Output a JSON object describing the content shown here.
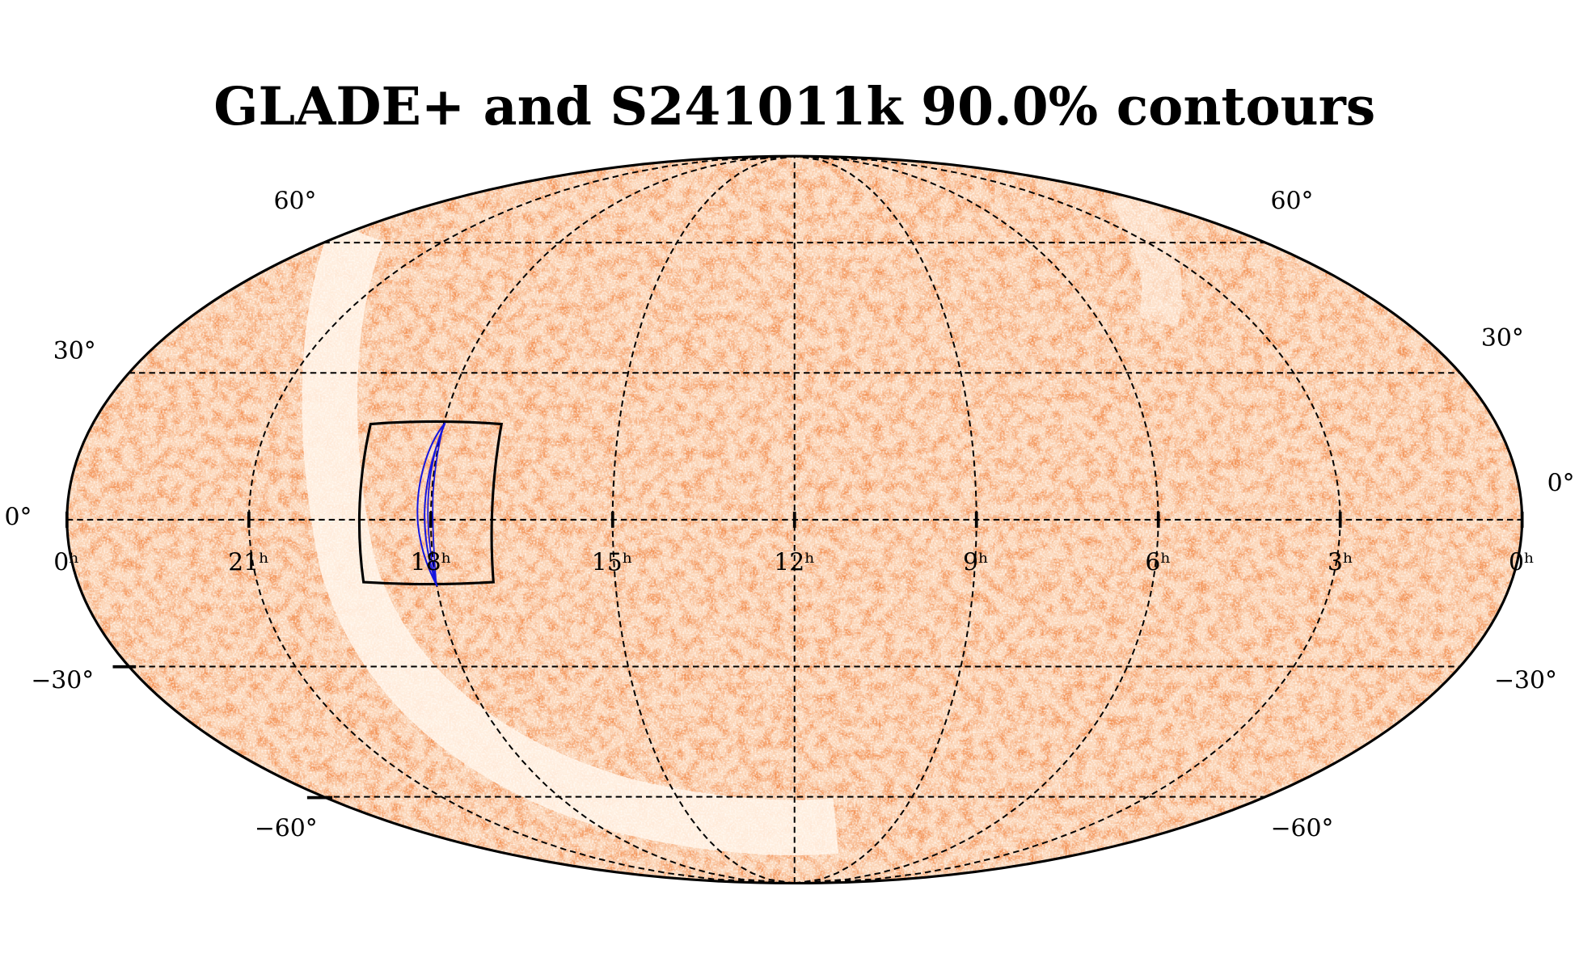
{
  "title": "GLADE+ and S241011k 90.0% contours",
  "ra_labels": [
    "0ʰ",
    "21ʰ",
    "18ʰ",
    "15ʰ",
    "12ʰ",
    "9ʰ",
    "6ʰ",
    "3ʰ",
    "0ʰ"
  ],
  "dec_labels_left": [
    "60°",
    "30°",
    "0°",
    "−30°",
    "−60°"
  ],
  "dec_labels_right": [
    "60°",
    "30°",
    "0°",
    "−30°",
    "−60°"
  ]
}
